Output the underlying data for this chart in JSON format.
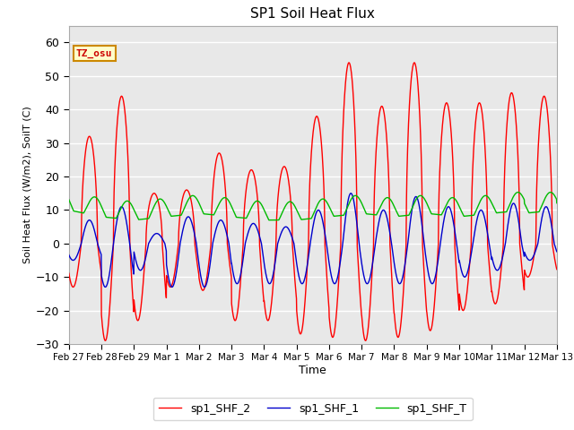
{
  "title": "SP1 Soil Heat Flux",
  "xlabel": "Time",
  "ylabel": "Soil Heat Flux (W/m2), SoilT (C)",
  "ylim": [
    -30,
    65
  ],
  "yticks": [
    -30,
    -20,
    -10,
    0,
    10,
    20,
    30,
    40,
    50,
    60
  ],
  "background_color": "#ffffff",
  "plot_bg_color": "#e8e8e8",
  "grid_color": "#ffffff",
  "tz_label": "TZ_osu",
  "legend_entries": [
    "sp1_SHF_2",
    "sp1_SHF_1",
    "sp1_SHF_T"
  ],
  "line_colors": [
    "#ff0000",
    "#0000cc",
    "#00bb00"
  ],
  "x_tick_labels": [
    "Feb 27",
    "Feb 28",
    "Feb 29",
    "Mar 1",
    "Mar 2",
    "Mar 3",
    "Mar 4",
    "Mar 5",
    "Mar 6",
    "Mar 7",
    "Mar 8",
    "Mar 9",
    "Mar 10",
    "Mar 11",
    "Mar 12",
    "Mar 13"
  ],
  "n_days": 15,
  "points_per_day": 144
}
